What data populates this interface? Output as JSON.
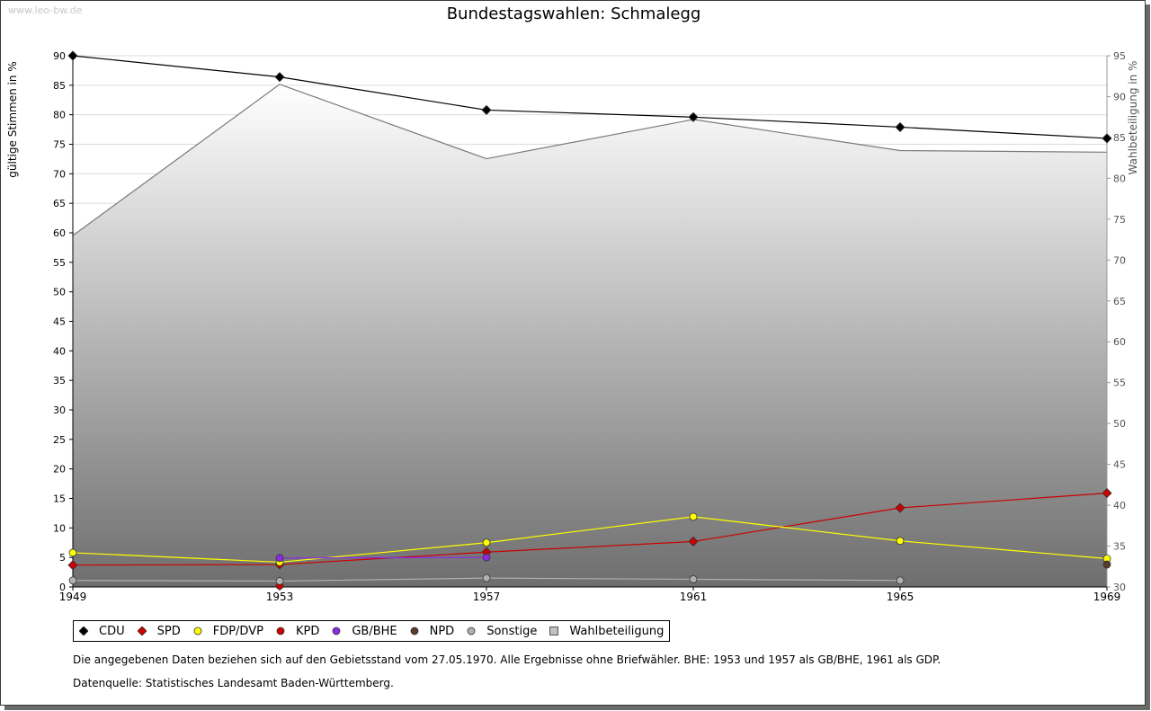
{
  "watermark": "www.leo-bw.de",
  "footnote": "Die angegebenen Daten beziehen sich auf den Gebietsstand vom 27.05.1970. Alle Ergebnisse ohne Briefwähler. BHE: 1953 und 1957 als GB/BHE, 1961 als GDP.",
  "source": "Datenquelle: Statistisches Landesamt Baden-Württemberg.",
  "colors": {
    "CDU": "#000000",
    "SPD": "#cc0000",
    "FDP/DVP": "#ffff00",
    "KPD": "#cc0000",
    "GB/BHE": "#8a2be2",
    "NPD": "#5a3a2a",
    "Sonstige": "#b0b0b0",
    "Wahlbeteiligung": "#c0c0c0"
  },
  "chart_data": {
    "type": "line",
    "title": "Bundestagswahlen: Schmalegg",
    "ylabel": "gültige Stimmen in %",
    "y2label": "Wahlbeteiligung in %",
    "x": [
      1949,
      1953,
      1957,
      1961,
      1965,
      1969
    ],
    "xticks": [
      "1949",
      "1953",
      "1957",
      "1961",
      "1965",
      "1969"
    ],
    "ylim": [
      0,
      90
    ],
    "yticks": [
      0,
      5,
      10,
      15,
      20,
      25,
      30,
      35,
      40,
      45,
      50,
      55,
      60,
      65,
      70,
      75,
      80,
      85,
      90
    ],
    "y2lim": [
      30,
      95
    ],
    "y2ticks": [
      30,
      35,
      40,
      45,
      50,
      55,
      60,
      65,
      70,
      75,
      80,
      85,
      90,
      95
    ],
    "grid": true,
    "legend_position": "bottom",
    "series": [
      {
        "name": "CDU",
        "marker": "diamond",
        "values": [
          90.0,
          86.4,
          80.8,
          79.6,
          77.9,
          76.0
        ]
      },
      {
        "name": "SPD",
        "marker": "diamond",
        "values": [
          3.7,
          3.8,
          5.9,
          7.7,
          13.4,
          15.9
        ]
      },
      {
        "name": "FDP/DVP",
        "marker": "circle",
        "values": [
          5.8,
          4.2,
          7.5,
          11.9,
          7.8,
          4.8
        ]
      },
      {
        "name": "KPD",
        "marker": "circle",
        "values": [
          null,
          0.2,
          null,
          null,
          null,
          null
        ]
      },
      {
        "name": "GB/BHE",
        "marker": "circle",
        "values": [
          null,
          4.9,
          5.0,
          null,
          null,
          null
        ]
      },
      {
        "name": "NPD",
        "marker": "circle",
        "values": [
          null,
          null,
          null,
          null,
          null,
          3.8
        ]
      },
      {
        "name": "Sonstige",
        "marker": "circle",
        "values": [
          1.1,
          1.0,
          1.5,
          1.3,
          1.1,
          null
        ]
      },
      {
        "name": "Wahlbeteiligung",
        "axis": "right",
        "marker": "square",
        "values": [
          73.0,
          91.5,
          82.4,
          87.2,
          83.4,
          83.2
        ]
      }
    ]
  }
}
